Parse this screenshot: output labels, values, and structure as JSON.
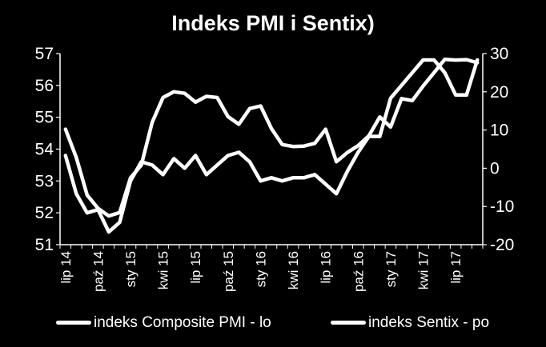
{
  "chart_data": {
    "type": "line",
    "title": "Indeks PMI i Sentix)",
    "x_tick_labels": [
      "lip 14",
      "paź 14",
      "sty 15",
      "kwi 15",
      "lip 15",
      "paź 15",
      "sty 16",
      "kwi 16",
      "lip 16",
      "paź 16",
      "sty 17",
      "kwi 17",
      "lip 17"
    ],
    "y_left": {
      "min": 51,
      "max": 57,
      "ticks": [
        51,
        52,
        53,
        54,
        55,
        56,
        57
      ]
    },
    "y_right": {
      "min": -20,
      "max": 30,
      "ticks": [
        -20,
        -10,
        0,
        10,
        20,
        30
      ]
    },
    "series": [
      {
        "name": "indeks Composite PMI - lo",
        "axis": "left",
        "color": "#ffffff",
        "values": [
          53.8,
          52.6,
          52.0,
          52.1,
          51.4,
          51.7,
          53.0,
          53.6,
          53.5,
          53.2,
          53.7,
          53.4,
          53.8,
          53.2,
          53.5,
          53.8,
          53.9,
          53.6,
          53.0,
          53.1,
          53.0,
          53.1,
          53.1,
          53.2,
          52.9,
          52.6,
          53.3,
          53.9,
          54.4,
          54.4,
          55.6,
          56.0,
          56.4,
          56.8,
          56.8,
          56.4,
          55.7,
          55.7,
          56.8
        ]
      },
      {
        "name": "indeks Sentix - po",
        "axis": "right",
        "color": "#ffffff",
        "values": [
          10.2,
          2.8,
          -7.0,
          -10.5,
          -12.5,
          -11.6,
          -2.5,
          0.8,
          12.0,
          18.5,
          20.0,
          19.6,
          17.3,
          18.8,
          18.5,
          13.5,
          11.5,
          15.6,
          16.3,
          10.4,
          6.2,
          5.7,
          5.8,
          6.5,
          10.2,
          1.7,
          4.1,
          5.9,
          8.5,
          13.4,
          10.8,
          18.2,
          17.7,
          21.5,
          25.0,
          28.5,
          28.3,
          28.4,
          27.6
        ]
      }
    ]
  }
}
